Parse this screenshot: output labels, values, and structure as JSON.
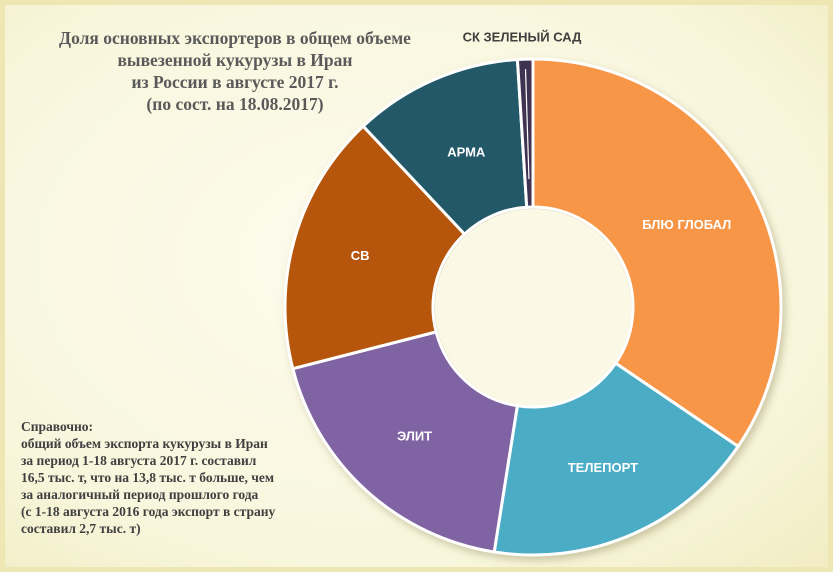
{
  "chart_data": {
    "type": "pie",
    "title_lines": [
      "Доля основных экспортеров в общем объеме",
      "вывезенной кукурузы в Иран",
      "из России в августе 2017 г.",
      "(по сост. на 18.08.2017)"
    ],
    "slices": [
      {
        "label": "БЛЮ ГЛОБАЛ",
        "value": 34.5,
        "color": "#f79646"
      },
      {
        "label": "ТЕЛЕПОРТ",
        "value": 18.0,
        "color": "#4bacc6"
      },
      {
        "label": "ЭЛИТ",
        "value": 18.5,
        "color": "#8064a2"
      },
      {
        "label": "СВ",
        "value": 17.0,
        "color": "#b65708"
      },
      {
        "label": "АРМА",
        "value": 11.0,
        "color": "#215968"
      },
      {
        "label": "СК ЗЕЛЕНЫЙ САД",
        "value": 1.0,
        "color": "#3f3151"
      }
    ],
    "hole": "center-donut",
    "legend": "none"
  },
  "note_lines": [
    "Справочно:",
    "общий объем экспорта кукурузы  в Иран",
    " за период 1-18 августа 2017 г. составил",
    "16,5 тыс. т, что на 13,8 тыс. т  больше, чем",
    "за аналогичный период прошлого года",
    "(с 1-18 августа 2016 года экспорт в страну",
    "составил  2,7 тыс. т)"
  ]
}
